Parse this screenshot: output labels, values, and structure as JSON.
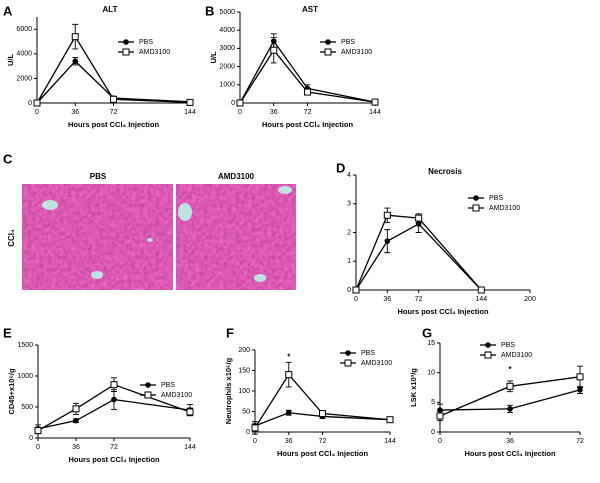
{
  "chart_data": [
    {
      "type": "line",
      "panel": "A",
      "title": "ALT",
      "y_label": "U/L",
      "x_label": "Hours post CCl₄ Injection",
      "x": [
        0,
        36,
        72,
        144
      ],
      "xlim": [
        0,
        144
      ],
      "xticks": [
        0,
        36,
        72,
        144
      ],
      "ylim": [
        0,
        7000
      ],
      "yticks": [
        0,
        2000,
        4000,
        6000
      ],
      "series": [
        {
          "name": "PBS",
          "color": "#000000",
          "marker": "circle",
          "values": [
            0,
            3400,
            400,
            100
          ],
          "errors": [
            0,
            300,
            80,
            30
          ]
        },
        {
          "name": "AMD3100",
          "color": "#000000",
          "marker": "square",
          "values": [
            0,
            5400,
            300,
            50
          ],
          "errors": [
            0,
            1000,
            100,
            20
          ]
        }
      ]
    },
    {
      "type": "line",
      "panel": "B",
      "title": "AST",
      "y_label": "U/L",
      "x_label": "Hours post CCl₄ Injection",
      "x": [
        0,
        36,
        72,
        144
      ],
      "xlim": [
        0,
        144
      ],
      "xticks": [
        0,
        36,
        72,
        144
      ],
      "ylim": [
        0,
        5000
      ],
      "yticks": [
        0,
        1000,
        2000,
        3000,
        4000,
        5000
      ],
      "series": [
        {
          "name": "PBS",
          "color": "#000000",
          "marker": "circle",
          "values": [
            0,
            3400,
            800,
            50
          ],
          "errors": [
            0,
            400,
            200,
            20
          ]
        },
        {
          "name": "AMD3100",
          "color": "#000000",
          "marker": "square",
          "values": [
            0,
            2900,
            600,
            50
          ],
          "errors": [
            0,
            700,
            150,
            20
          ]
        }
      ]
    },
    {
      "type": "line",
      "panel": "D",
      "title": "Necrosis",
      "x_label": "Hours post CCl₄ Injection",
      "x": [
        0,
        36,
        72,
        144
      ],
      "xlim": [
        0,
        200
      ],
      "xticks": [
        0,
        36,
        72,
        144,
        200
      ],
      "ylim": [
        0,
        4
      ],
      "yticks": [
        0,
        1,
        2,
        3,
        4
      ],
      "series": [
        {
          "name": "PBS",
          "color": "#000000",
          "marker": "circle",
          "values": [
            0,
            1.7,
            2.3,
            0
          ],
          "errors": [
            0,
            0.4,
            0.3,
            0
          ]
        },
        {
          "name": "AMD3100",
          "color": "#000000",
          "marker": "square",
          "values": [
            0,
            2.6,
            2.5,
            0
          ],
          "errors": [
            0,
            0.25,
            0.15,
            0
          ]
        }
      ]
    },
    {
      "type": "line",
      "panel": "E",
      "y_label": "CD45+x10⁶/g",
      "x_label": "Hours post CCl₄ Injection",
      "x": [
        0,
        36,
        72,
        144
      ],
      "xlim": [
        0,
        144
      ],
      "xticks": [
        0,
        36,
        72,
        144
      ],
      "ylim": [
        0,
        1500
      ],
      "yticks": [
        0,
        500,
        1000,
        1500
      ],
      "series": [
        {
          "name": "PBS",
          "color": "#000000",
          "marker": "circle",
          "values": [
            150,
            280,
            620,
            450
          ],
          "errors": [
            60,
            30,
            160,
            90
          ]
        },
        {
          "name": "AMD3100",
          "color": "#000000",
          "marker": "square",
          "values": [
            120,
            470,
            860,
            420
          ],
          "errors": [
            50,
            90,
            110,
            60
          ]
        }
      ]
    },
    {
      "type": "line",
      "panel": "F",
      "y_label": "Neutrophils x10⁶/g",
      "x_label": "Hours post CCl₄ Injection",
      "x": [
        0,
        36,
        72,
        144
      ],
      "xlim": [
        0,
        144
      ],
      "xticks": [
        0,
        36,
        72,
        144
      ],
      "ylim": [
        0,
        200
      ],
      "yticks": [
        0,
        50,
        100,
        150,
        200
      ],
      "annotations": [
        {
          "text": "*",
          "x": 36,
          "y": 182
        }
      ],
      "series": [
        {
          "name": "PBS",
          "color": "#000000",
          "marker": "circle",
          "values": [
            15,
            47,
            38,
            30
          ],
          "errors": [
            5,
            6,
            5,
            3
          ]
        },
        {
          "name": "AMD3100",
          "color": "#000000",
          "marker": "square",
          "values": [
            10,
            140,
            45,
            30
          ],
          "errors": [
            15,
            30,
            6,
            3
          ]
        }
      ]
    },
    {
      "type": "line",
      "panel": "G",
      "y_label": "LSK x10³/g",
      "x_label": "Hours post CCl₄ Injection",
      "x": [
        0,
        36,
        72
      ],
      "xlim": [
        0,
        72
      ],
      "xticks": [
        0,
        36,
        72
      ],
      "ylim": [
        0,
        15
      ],
      "yticks": [
        0,
        5,
        10,
        15
      ],
      "annotations": [
        {
          "text": "*",
          "x": 36,
          "y": 10.5
        }
      ],
      "series": [
        {
          "name": "PBS",
          "color": "#000000",
          "marker": "circle",
          "values": [
            3.7,
            3.9,
            7.1
          ],
          "errors": [
            1.0,
            0.6,
            0.6
          ]
        },
        {
          "name": "AMD3100",
          "color": "#000000",
          "marker": "square",
          "values": [
            2.7,
            7.7,
            9.3
          ],
          "errors": [
            0.8,
            0.9,
            1.8
          ]
        }
      ]
    }
  ],
  "panel_c": {
    "letter": "C",
    "row_label": "CCl₄",
    "images": [
      {
        "label": "PBS"
      },
      {
        "label": "AMD3100"
      }
    ]
  }
}
